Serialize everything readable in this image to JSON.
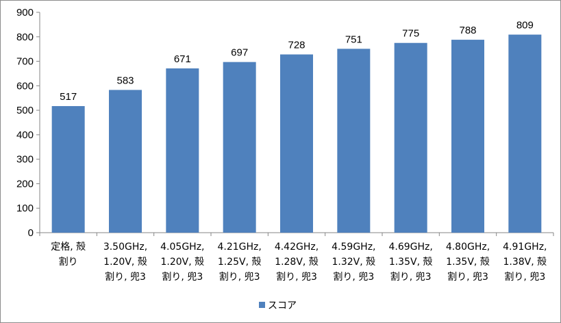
{
  "chart_data": {
    "type": "bar",
    "categories": [
      [
        "定格, 殻",
        "割り"
      ],
      [
        "3.50GHz,",
        "1.20V, 殻",
        "割り, 兜3"
      ],
      [
        "4.05GHz,",
        "1.20V, 殻",
        "割り, 兜3"
      ],
      [
        "4.21GHz,",
        "1.25V, 殻",
        "割り, 兜3"
      ],
      [
        "4.42GHz,",
        "1.28V, 殻",
        "割り, 兜3"
      ],
      [
        "4.59GHz,",
        "1.32V, 殻",
        "割り, 兜3"
      ],
      [
        "4.69GHz,",
        "1.35V, 殻",
        "割り, 兜3"
      ],
      [
        "4.80GHz,",
        "1.35V, 殻",
        "割り, 兜3"
      ],
      [
        "4.91GHz,",
        "1.38V, 殻",
        "割り, 兜3"
      ]
    ],
    "series": [
      {
        "name": "スコア",
        "values": [
          517,
          583,
          671,
          697,
          728,
          751,
          775,
          788,
          809
        ],
        "color": "#4f81bd"
      }
    ],
    "ylim": [
      0,
      900
    ],
    "yticks": [
      0,
      100,
      200,
      300,
      400,
      500,
      600,
      700,
      800,
      900
    ],
    "grid": false,
    "legend": "bottom"
  }
}
